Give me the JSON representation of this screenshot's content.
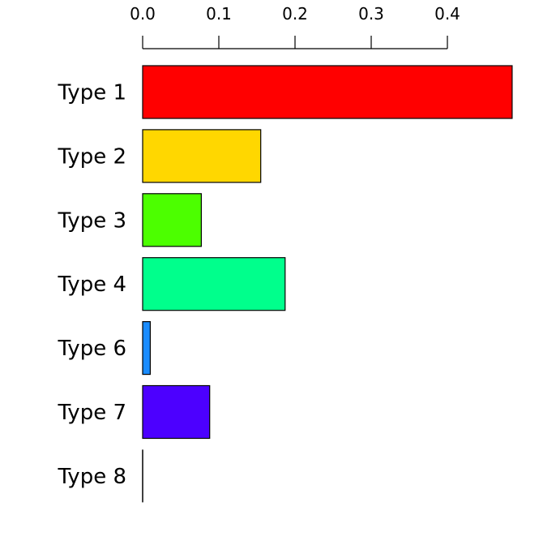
{
  "chart_data": {
    "type": "bar",
    "orientation": "horizontal",
    "title": "",
    "xlabel": "",
    "ylabel": "",
    "axis_position": "top",
    "grid": false,
    "legend": "none",
    "xlim": [
      0,
      0.485
    ],
    "ticks": [
      "0.0",
      "0.1",
      "0.2",
      "0.3",
      "0.4"
    ],
    "categories": [
      "Type 1",
      "Type 2",
      "Type 3",
      "Type 4",
      "Type 6",
      "Type 7",
      "Type 8"
    ],
    "values": [
      0.485,
      0.155,
      0.077,
      0.187,
      0.01,
      0.088,
      0.0
    ],
    "colors": [
      "#FF0000",
      "#FFD700",
      "#4CFF00",
      "#00FF8C",
      "#1A8CFF",
      "#4C00FF",
      "#FF00D4"
    ]
  }
}
